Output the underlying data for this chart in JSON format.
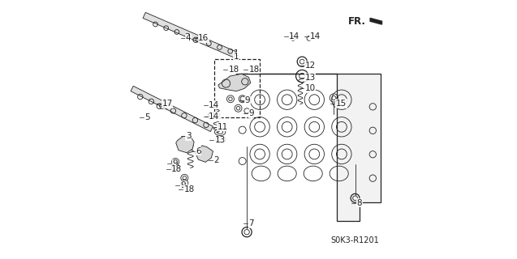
{
  "background_color": "#ffffff",
  "image_code": "S0K3-R1201",
  "fr_label": "FR.",
  "line_color": "#222222",
  "label_fontsize": 7.5,
  "code_fontsize": 7
}
